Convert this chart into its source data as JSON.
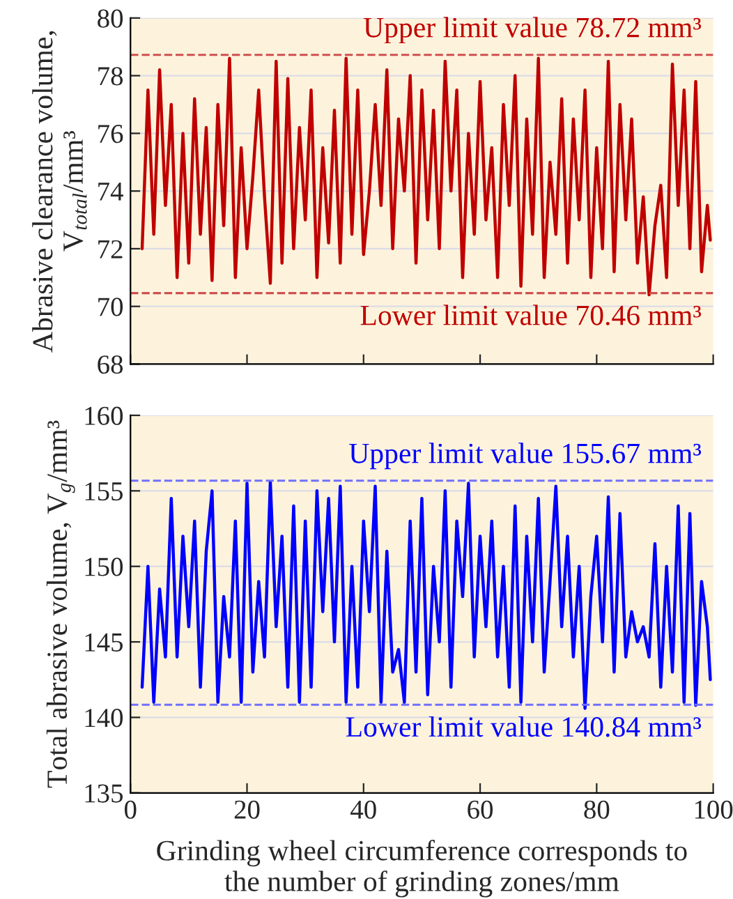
{
  "chart_data": [
    {
      "type": "line",
      "ylabel": "Abrasive clearance volume,\nV$_{total}$/mm³",
      "xlim": [
        0,
        100
      ],
      "xticks": [
        {
          "value": 0,
          "label": null
        },
        {
          "value": 20,
          "label": null
        },
        {
          "value": 40,
          "label": null
        },
        {
          "value": 60,
          "label": null
        },
        {
          "value": 80,
          "label": null
        },
        {
          "value": 100,
          "label": null
        }
      ],
      "ylim": [
        68,
        80
      ],
      "yticks": [
        68,
        70,
        72,
        74,
        76,
        78,
        80
      ],
      "tick_labels": "y",
      "grid": "y",
      "legend": false,
      "x": [
        2,
        3,
        4,
        5,
        6,
        7,
        8,
        9,
        10,
        11,
        12,
        13,
        14,
        15,
        16,
        17,
        18,
        19,
        20,
        21,
        22,
        23,
        24,
        25,
        26,
        27,
        28,
        29,
        30,
        31,
        32,
        33,
        34,
        35,
        36,
        37,
        38,
        39,
        40,
        41,
        42,
        43,
        44,
        45,
        46,
        47,
        48,
        49,
        50,
        51,
        52,
        53,
        54,
        55,
        56,
        57,
        58,
        59,
        60,
        61,
        62,
        63,
        64,
        65,
        66,
        67,
        68,
        69,
        70,
        71,
        72,
        73,
        74,
        75,
        76,
        77,
        78,
        79,
        80,
        81,
        82,
        83,
        84,
        85,
        86,
        87,
        88,
        89,
        90,
        91,
        92,
        93,
        94,
        95,
        96,
        97,
        98,
        99,
        99.5
      ],
      "series": [
        {
          "color": "#c00000",
          "values": [
            72.0,
            77.5,
            72.5,
            78.2,
            73.5,
            77.0,
            71.0,
            76.0,
            71.5,
            77.2,
            72.5,
            76.2,
            70.9,
            77.0,
            72.8,
            78.6,
            71.0,
            75.5,
            72.0,
            74.5,
            77.5,
            73.8,
            70.8,
            78.5,
            71.5,
            77.9,
            72.0,
            76.2,
            73.0,
            77.5,
            71.0,
            75.5,
            72.2,
            76.8,
            71.5,
            78.6,
            72.5,
            77.5,
            71.8,
            74.0,
            77.0,
            73.5,
            78.2,
            72.0,
            76.5,
            74.0,
            78.0,
            71.5,
            77.5,
            73.0,
            76.8,
            72.0,
            78.5,
            74.0,
            77.5,
            71.0,
            76.0,
            72.5,
            77.8,
            73.0,
            75.5,
            71.0,
            77.0,
            73.5,
            78.0,
            70.7,
            76.5,
            72.5,
            78.6,
            71.0,
            75.0,
            72.5,
            77.2,
            71.5,
            76.5,
            73.0,
            77.5,
            71.0,
            75.5,
            72.0,
            78.5,
            71.2,
            77.0,
            73.0,
            76.5,
            71.5,
            73.8,
            70.4,
            72.8,
            74.2,
            71.0,
            78.4,
            73.5,
            77.5,
            72.0,
            77.8,
            71.2,
            73.5,
            72.3
          ]
        }
      ],
      "ref_lines": [
        {
          "axis": "y",
          "value": 78.72,
          "label": "Upper limit value 78.72 mm³",
          "color": "#d05050",
          "line_style": "dashed"
        },
        {
          "axis": "y",
          "value": 70.46,
          "label": "Lower limit value 70.46 mm³",
          "color": "#d05050",
          "line_style": "dashed"
        }
      ]
    },
    {
      "type": "line",
      "ylabel": "Total abrasive volume, V$_{g}$/mm³",
      "xlabel": "Grinding wheel circumference corresponds to\nthe number of grinding zones/mm",
      "xlim": [
        0,
        100
      ],
      "xticks": [
        0,
        20,
        40,
        60,
        80,
        100
      ],
      "ylim": [
        135,
        160
      ],
      "yticks": [
        135,
        140,
        145,
        150,
        155,
        160
      ],
      "grid": "y",
      "legend": false,
      "x": [
        2,
        3,
        4,
        5,
        6,
        7,
        8,
        9,
        10,
        11,
        12,
        13,
        14,
        15,
        16,
        17,
        18,
        19,
        20,
        21,
        22,
        23,
        24,
        25,
        26,
        27,
        28,
        29,
        30,
        31,
        32,
        33,
        34,
        35,
        36,
        37,
        38,
        39,
        40,
        41,
        42,
        43,
        44,
        45,
        46,
        47,
        48,
        49,
        50,
        51,
        52,
        53,
        54,
        55,
        56,
        57,
        58,
        59,
        60,
        61,
        62,
        63,
        64,
        65,
        66,
        67,
        68,
        69,
        70,
        71,
        72,
        73,
        74,
        75,
        76,
        77,
        78,
        79,
        80,
        81,
        82,
        83,
        84,
        85,
        86,
        87,
        88,
        89,
        90,
        91,
        92,
        93,
        94,
        95,
        96,
        97,
        98,
        99,
        99.5
      ],
      "series": [
        {
          "color": "#0000ff",
          "values": [
            142,
            150,
            141,
            148.5,
            144,
            154.5,
            144,
            152,
            146,
            153,
            142,
            151,
            155,
            141,
            148,
            144,
            153,
            141,
            155.5,
            143,
            149,
            144,
            155.6,
            146,
            152,
            142,
            154,
            141,
            153,
            142,
            155,
            147,
            154.5,
            145,
            155.3,
            141,
            150,
            142,
            153,
            147,
            155.3,
            141,
            151,
            143,
            144.5,
            141,
            153,
            143,
            154.5,
            141.5,
            150,
            145,
            155,
            142,
            153,
            148,
            155.5,
            144,
            152,
            146,
            153,
            144,
            150,
            142,
            154,
            141,
            152,
            145,
            154.5,
            143,
            149,
            155.3,
            146,
            152,
            144,
            150,
            140.6,
            148,
            152,
            145,
            154.6,
            143,
            153.5,
            144,
            147,
            145,
            146,
            144,
            151.5,
            142,
            150,
            143,
            154,
            141,
            153.5,
            140.8,
            149,
            146,
            142.5
          ]
        }
      ],
      "ref_lines": [
        {
          "axis": "y",
          "value": 155.67,
          "label": "Upper limit value 155.67 mm³",
          "color": "#7070ff",
          "line_style": "dashed"
        },
        {
          "axis": "y",
          "value": 140.84,
          "label": "Lower limit value 140.84 mm³",
          "color": "#7070ff",
          "line_style": "dashed"
        }
      ]
    }
  ]
}
